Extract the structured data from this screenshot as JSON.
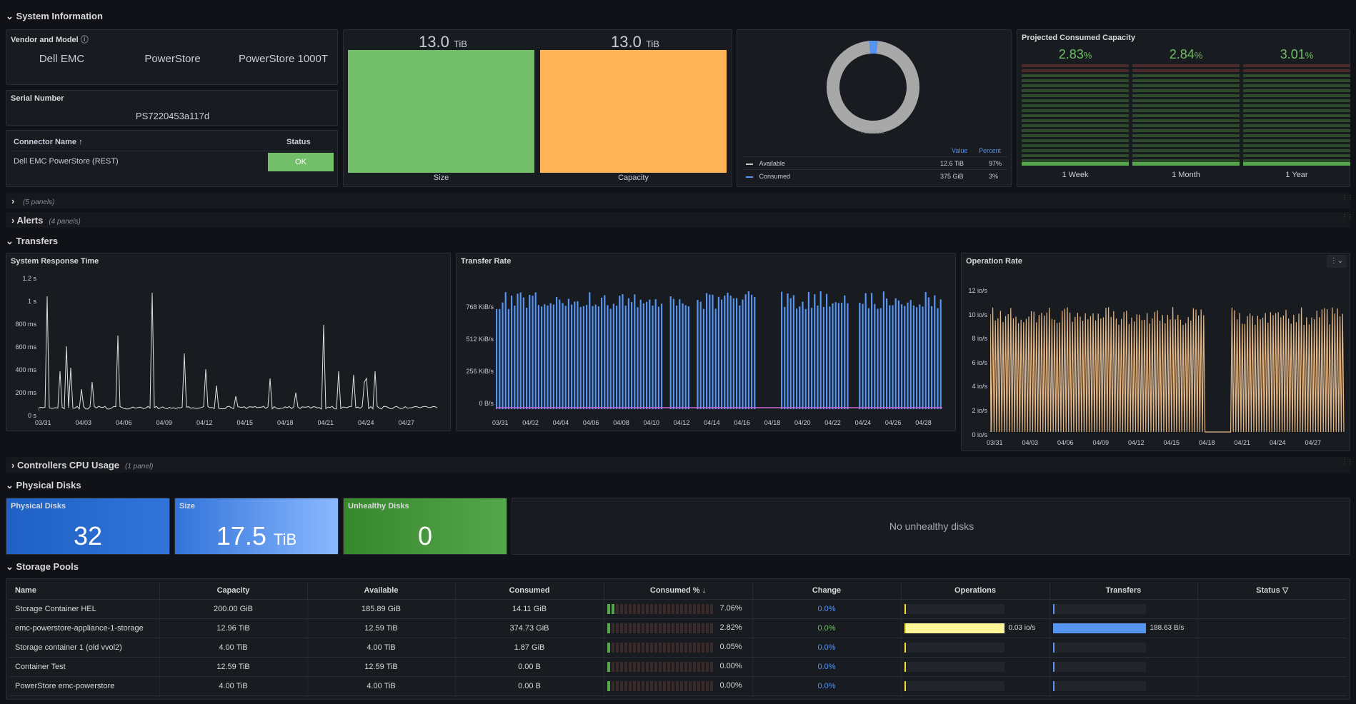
{
  "rows": {
    "system_information": "System Information",
    "collapsed_row_1": "",
    "collapsed_row_1_count": "(5 panels)",
    "alerts": "Alerts",
    "alerts_count": "(4 panels)",
    "transfers": "Transfers",
    "controllers_cpu": "Controllers CPU Usage",
    "controllers_cpu_count": "(1 panel)",
    "physical_disks": "Physical Disks",
    "storage_pools": "Storage Pools"
  },
  "vendor": {
    "title": "Vendor and Model",
    "vendor": "Dell EMC",
    "product": "PowerStore",
    "model": "PowerStore 1000T"
  },
  "serial": {
    "title": "Serial Number",
    "value": "PS7220453a117d"
  },
  "connector": {
    "col_name": "Connector Name",
    "col_status": "Status",
    "rows": [
      {
        "name": "Dell EMC PowerStore (REST)",
        "status": "OK"
      }
    ]
  },
  "size_capacity": {
    "size_value": "13.0",
    "size_unit": "TiB",
    "size_label": "Size",
    "capacity_value": "13.0",
    "capacity_unit": "TiB",
    "capacity_label": "Capacity",
    "size_color": "#73bf69",
    "capacity_color": "#ffb357"
  },
  "donut": {
    "center_label": "Available",
    "col_value": "Value",
    "col_percent": "Percent",
    "rows": [
      {
        "name": "Available",
        "value": "12.6 TiB",
        "percent": "97%",
        "color": "#c7c7c7"
      },
      {
        "name": "Consumed",
        "value": "375 GiB",
        "percent": "3%",
        "color": "#5794f2"
      }
    ],
    "chart_data": {
      "type": "pie",
      "categories": [
        "Available",
        "Consumed"
      ],
      "values": [
        97,
        3
      ]
    }
  },
  "projected": {
    "title": "Projected Consumed Capacity",
    "items": [
      {
        "value": "2.83",
        "unit": "%",
        "label": "1 Week"
      },
      {
        "value": "2.84",
        "unit": "%",
        "label": "1 Month"
      },
      {
        "value": "3.01",
        "unit": "%",
        "label": "1 Year"
      }
    ]
  },
  "response_time": {
    "title": "System Response Time",
    "yticks": [
      "1.2 s",
      "1 s",
      "800 ms",
      "600 ms",
      "400 ms",
      "200 ms",
      "0 s"
    ],
    "xticks": [
      "03/31",
      "04/03",
      "04/06",
      "04/09",
      "04/12",
      "04/15",
      "04/18",
      "04/21",
      "04/24",
      "04/27"
    ]
  },
  "transfer_rate": {
    "title": "Transfer Rate",
    "yticks": [
      "768 KiB/s",
      "512 KiB/s",
      "256 KiB/s",
      "0 B/s"
    ],
    "xticks": [
      "03/31",
      "04/02",
      "04/04",
      "04/06",
      "04/08",
      "04/10",
      "04/12",
      "04/14",
      "04/16",
      "04/18",
      "04/20",
      "04/22",
      "04/24",
      "04/26",
      "04/28"
    ]
  },
  "operation_rate": {
    "title": "Operation Rate",
    "yticks": [
      "12 io/s",
      "10 io/s",
      "8 io/s",
      "6 io/s",
      "4 io/s",
      "2 io/s",
      "0 io/s"
    ],
    "xticks": [
      "03/31",
      "04/03",
      "04/06",
      "04/09",
      "04/12",
      "04/15",
      "04/18",
      "04/21",
      "04/24",
      "04/27"
    ]
  },
  "disks": {
    "physical_title": "Physical Disks",
    "physical_value": "32",
    "size_title": "Size",
    "size_value": "17.5",
    "size_unit": "TiB",
    "unhealthy_title": "Unhealthy Disks",
    "unhealthy_value": "0",
    "no_unhealthy": "No unhealthy disks"
  },
  "pools": {
    "columns": [
      "Name",
      "Capacity",
      "Available",
      "Consumed",
      "Consumed %",
      "Change",
      "Operations",
      "Transfers",
      "Status"
    ],
    "rows": [
      {
        "name": "Storage Container HEL",
        "capacity": "200.00 GiB",
        "available": "185.89 GiB",
        "consumed": "14.11 GiB",
        "pct": "7.06%",
        "pct_num": 7.06,
        "change": "0.0%",
        "change_color": "#5794f2",
        "ops": "",
        "ops_frac": 0,
        "xfer": "",
        "xfer_frac": 0
      },
      {
        "name": "emc-powerstore-appliance-1-storage",
        "capacity": "12.96 TiB",
        "available": "12.59 TiB",
        "consumed": "374.73 GiB",
        "pct": "2.82%",
        "pct_num": 2.82,
        "change": "0.0%",
        "change_color": "#73bf69",
        "ops": "0.03 io/s",
        "ops_frac": 1,
        "xfer": "188.63 B/s",
        "xfer_frac": 1
      },
      {
        "name": "Storage container 1 (old vvol2)",
        "capacity": "4.00 TiB",
        "available": "4.00 TiB",
        "consumed": "1.87 GiB",
        "pct": "0.05%",
        "pct_num": 0.05,
        "change": "0.0%",
        "change_color": "#5794f2",
        "ops": "",
        "ops_frac": 0,
        "xfer": "",
        "xfer_frac": 0
      },
      {
        "name": "Container Test",
        "capacity": "12.59 TiB",
        "available": "12.59 TiB",
        "consumed": "0.00 B",
        "pct": "0.00%",
        "pct_num": 0,
        "change": "0.0%",
        "change_color": "#5794f2",
        "ops": "",
        "ops_frac": 0,
        "xfer": "",
        "xfer_frac": 0
      },
      {
        "name": "PowerStore emc-powerstore",
        "capacity": "4.00 TiB",
        "available": "4.00 TiB",
        "consumed": "0.00 B",
        "pct": "0.00%",
        "pct_num": 0,
        "change": "0.0%",
        "change_color": "#5794f2",
        "ops": "",
        "ops_frac": 0,
        "xfer": "",
        "xfer_frac": 0
      }
    ]
  }
}
